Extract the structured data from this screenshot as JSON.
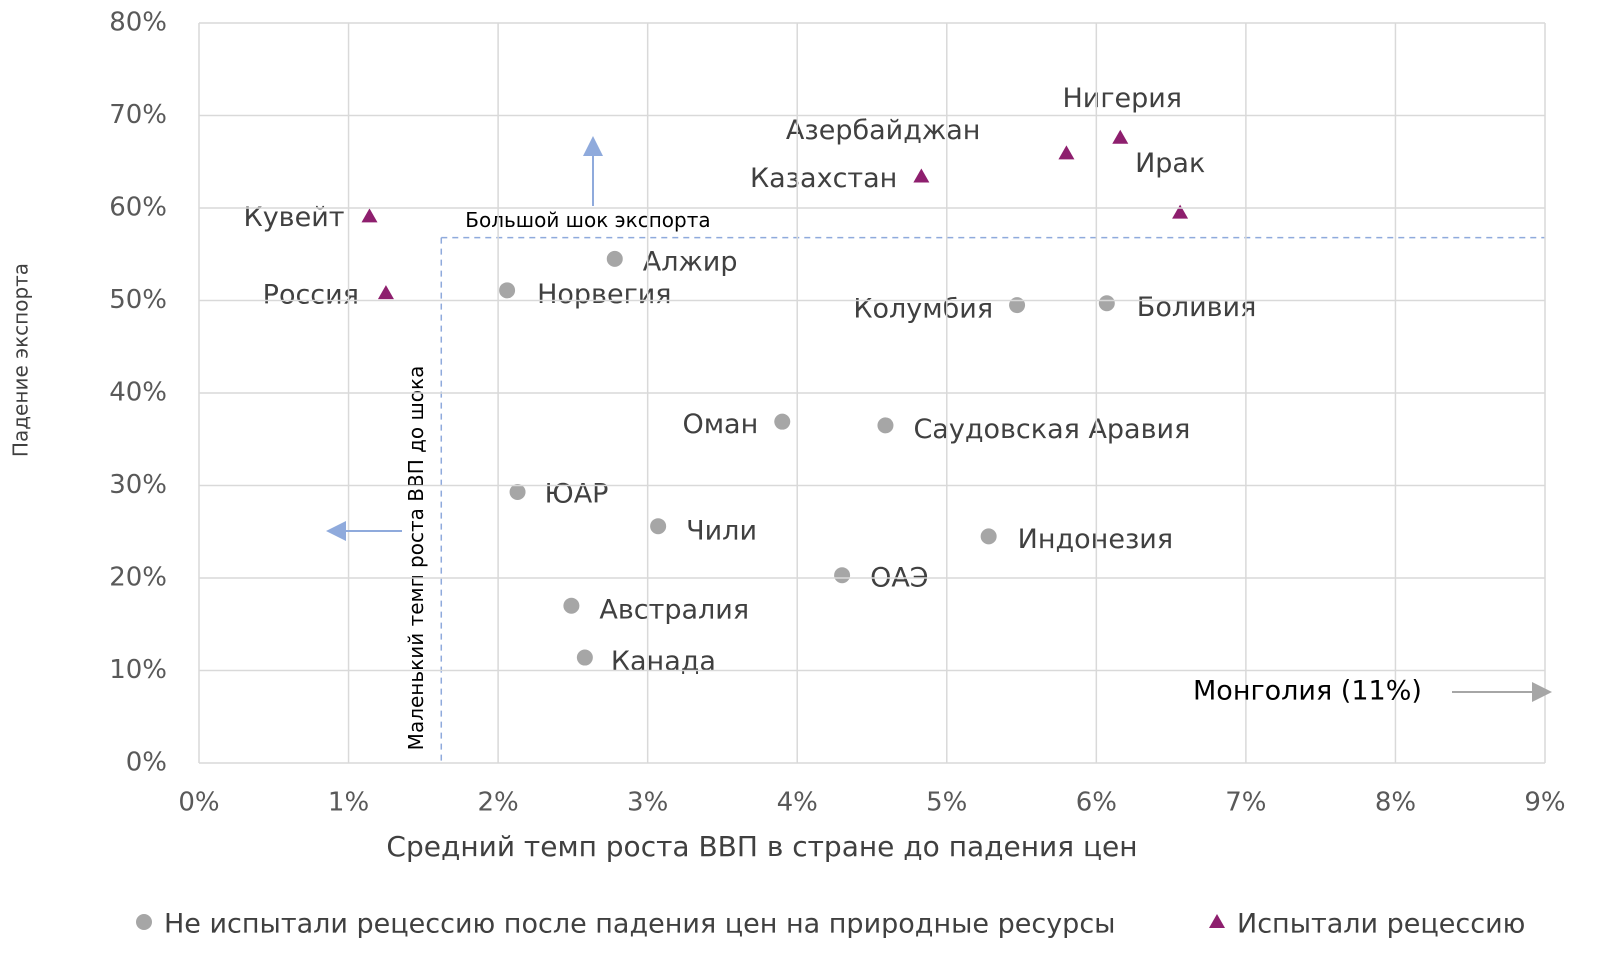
{
  "chart_data": {
    "type": "scatter",
    "xlabel": "Средний темп роста ВВП в стране до падения цен",
    "ylabel": "Падение экспорта",
    "xlim": [
      0,
      9
    ],
    "ylim": [
      0,
      80
    ],
    "xticks": [
      {
        "value": 0,
        "label": "0%"
      },
      {
        "value": 1,
        "label": "1%"
      },
      {
        "value": 2,
        "label": "2%"
      },
      {
        "value": 3,
        "label": "3%"
      },
      {
        "value": 4,
        "label": "4%"
      },
      {
        "value": 5,
        "label": "5%"
      },
      {
        "value": 6,
        "label": "6%"
      },
      {
        "value": 7,
        "label": "7%"
      },
      {
        "value": 8,
        "label": "8%"
      },
      {
        "value": 9,
        "label": "9%"
      }
    ],
    "yticks": [
      {
        "value": 0,
        "label": "0%"
      },
      {
        "value": 10,
        "label": "10%"
      },
      {
        "value": 20,
        "label": "20%"
      },
      {
        "value": 30,
        "label": "30%"
      },
      {
        "value": 40,
        "label": "40%"
      },
      {
        "value": 50,
        "label": "50%"
      },
      {
        "value": 60,
        "label": "60%"
      },
      {
        "value": 70,
        "label": "70%"
      },
      {
        "value": 80,
        "label": "80%"
      }
    ],
    "grid": true,
    "legend": "bottom",
    "series": [
      {
        "name": "Не испытали рецессию после падения цен на природные ресурсы",
        "color": "#a6a6a6",
        "marker": "circle",
        "labels": [
          "Алжир",
          "Норвегия",
          "Колумбия",
          "Боливия",
          "Оман",
          "Саудовская Аравия",
          "ЮАР",
          "Чили",
          "Индонезия",
          "ОАЭ",
          "Австралия",
          "Канада"
        ],
        "x": [
          2.78,
          2.06,
          5.47,
          6.07,
          3.9,
          4.59,
          2.13,
          3.07,
          5.28,
          4.3,
          2.49,
          2.58
        ],
        "values": [
          54.5,
          51.1,
          49.5,
          49.7,
          36.9,
          36.5,
          29.3,
          25.6,
          24.5,
          20.3,
          17.0,
          11.4
        ]
      },
      {
        "name": "Испытали рецессию",
        "color": "#8e1f6e",
        "marker": "triangle",
        "labels": [
          "Кувейт",
          "Россия",
          "Казахстан",
          "Азербайджан",
          "Нигерия",
          "Ирак"
        ],
        "x": [
          1.14,
          1.25,
          4.83,
          5.8,
          6.16,
          6.56
        ],
        "values": [
          59.1,
          50.8,
          63.4,
          65.9,
          67.6,
          59.5
        ]
      }
    ],
    "thresholds": {
      "x": 1.62,
      "y": 56.8,
      "x_label": "Маленький темп роста ВВП до шока",
      "y_label": "Большой шок экспорта"
    },
    "annotation": "Монголия (11%)"
  }
}
